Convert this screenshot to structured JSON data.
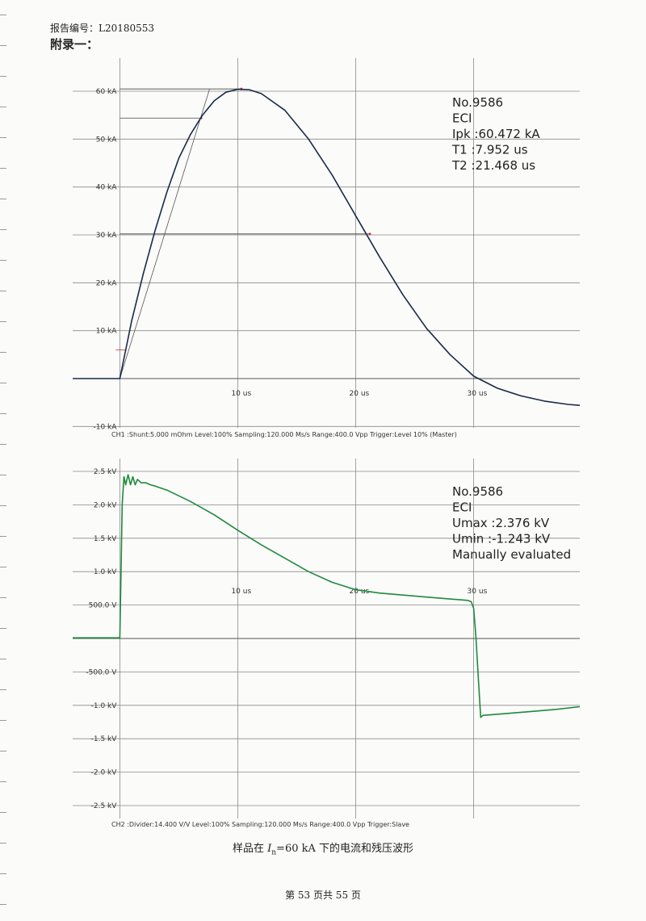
{
  "header": {
    "report_no": "报告编号：L20180553",
    "appendix": "附录一："
  },
  "caption": {
    "prefix": "样品在 ",
    "symbol": "I",
    "subscript": "n",
    "suffix": "=60 kA 下的电流和残压波形"
  },
  "footer": {
    "page": "第 53 页共 55 页"
  },
  "colors": {
    "current_trace": "#1a2a4a",
    "voltage_trace": "#1e8a3c",
    "grid": "#8a8a8a",
    "marker": "#cc3333"
  },
  "chart_data": [
    {
      "type": "line",
      "x_unit": "us",
      "xlim": [
        -4,
        39
      ],
      "ylim": [
        -10,
        65
      ],
      "grid": true,
      "y_ticks": [
        {
          "v": 60,
          "label": "60 kA"
        },
        {
          "v": 50,
          "label": "50 kA"
        },
        {
          "v": 40,
          "label": "40 kA"
        },
        {
          "v": 30,
          "label": "30 kA"
        },
        {
          "v": 20,
          "label": "20 kA"
        },
        {
          "v": 10,
          "label": "10 kA"
        },
        {
          "v": -10,
          "label": "-10 kA"
        }
      ],
      "x_ticks": [
        {
          "v": 10,
          "label": "10 us"
        },
        {
          "v": 20,
          "label": "20 us"
        },
        {
          "v": 30,
          "label": "30 us"
        }
      ],
      "series": [
        {
          "x": [
            -4,
            0,
            0.5,
            1,
            2,
            3,
            4,
            5,
            6,
            7,
            8,
            9,
            10,
            11,
            12,
            14,
            16,
            18,
            20,
            22,
            24,
            26,
            28,
            30,
            32,
            34,
            36,
            38,
            39
          ],
          "y": [
            0,
            0,
            6,
            12,
            22,
            31,
            39,
            46,
            51,
            55,
            58,
            59.8,
            60.4,
            60.3,
            59.5,
            56,
            50,
            42.5,
            34,
            25.5,
            17.5,
            10.5,
            5,
            0.5,
            -2,
            -3.6,
            -4.7,
            -5.4,
            -5.6
          ]
        }
      ],
      "annotations": {
        "peak": {
          "x": 10.3,
          "y": 60.472
        },
        "level_90": 54.4,
        "level_50": 30.2,
        "level_10": 6,
        "front_line": [
          [
            0,
            0
          ],
          [
            7.6,
            60.4
          ]
        ],
        "point_90": {
          "x": 6.9,
          "y": 54.4
        },
        "point_50": {
          "x": 21.2,
          "y": 30.2
        }
      },
      "info": [
        "No.9586",
        "ECI",
        "Ipk      :60.472 kA",
        "T1       :7.952 us",
        "T2       :21.468 us"
      ],
      "channel_info": "CH1 :Shunt:5.000 mOhm  Level:100%  Sampling:120.000 Ms/s  Range:400.0 Vpp  Trigger:Level 10%  (Master)"
    },
    {
      "type": "line",
      "x_unit": "us",
      "xlim": [
        -4,
        39
      ],
      "ylim": [
        -2.5,
        2.5
      ],
      "grid": true,
      "y_ticks": [
        {
          "v": 2.5,
          "label": "2.5 kV"
        },
        {
          "v": 2.0,
          "label": "2.0 kV"
        },
        {
          "v": 1.5,
          "label": "1.5 kV"
        },
        {
          "v": 1.0,
          "label": "1.0 kV"
        },
        {
          "v": 0.5,
          "label": "500.0 V"
        },
        {
          "v": -0.5,
          "label": "-500.0 V"
        },
        {
          "v": -1.0,
          "label": "-1.0 kV"
        },
        {
          "v": -1.5,
          "label": "-1.5 kV"
        },
        {
          "v": -2.0,
          "label": "-2.0 kV"
        },
        {
          "v": -2.5,
          "label": "-2.5 kV"
        }
      ],
      "x_ticks": [
        {
          "v": 10,
          "label": "10 us"
        },
        {
          "v": 20,
          "label": "20 us"
        },
        {
          "v": 30,
          "label": "30 us"
        }
      ],
      "series": [
        {
          "x": [
            -4,
            0,
            0.1,
            0.2,
            0.35,
            0.5,
            0.7,
            0.9,
            1.1,
            1.3,
            1.5,
            1.8,
            2.2,
            2.6,
            3,
            4,
            6,
            8,
            10,
            12,
            14,
            16,
            18,
            20,
            22,
            24,
            26,
            28,
            29.5,
            29.8,
            30,
            30.2,
            30.4,
            30.6,
            30.8,
            31.5,
            33,
            35,
            37,
            39
          ],
          "y": [
            0.01,
            0.01,
            1.0,
            2.0,
            2.42,
            2.3,
            2.45,
            2.3,
            2.42,
            2.3,
            2.38,
            2.33,
            2.33,
            2.3,
            2.28,
            2.22,
            2.05,
            1.85,
            1.62,
            1.4,
            1.2,
            1.0,
            0.84,
            0.73,
            0.68,
            0.65,
            0.62,
            0.59,
            0.57,
            0.55,
            0.45,
            0.0,
            -0.6,
            -1.18,
            -1.15,
            -1.14,
            -1.12,
            -1.09,
            -1.06,
            -1.02
          ]
        }
      ],
      "info": [
        "No.9586",
        "ECI",
        "Umax    :2.376 kV",
        "Umin    :-1.243 kV",
        "Manually evaluated"
      ],
      "channel_info": "CH2 :Divider:14.400 V/V  Level:100%  Sampling:120.000 Ms/s  Range:400.0 Vpp  Trigger:Slave"
    }
  ]
}
